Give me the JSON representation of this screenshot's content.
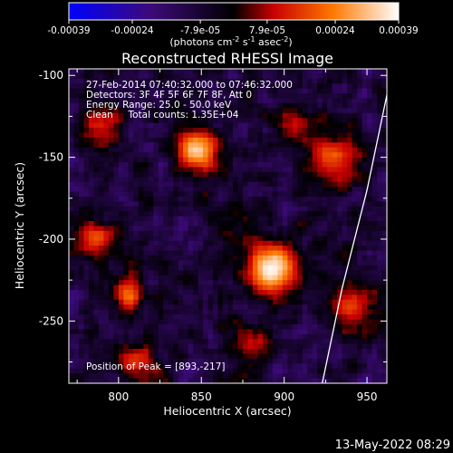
{
  "chart_data": {
    "type": "heatmap",
    "title": "Reconstructed RHESSI Image",
    "xlabel": "Heliocentric X (arcsec)",
    "ylabel": "Heliocentric Y (arcsec)",
    "xlim": [
      770,
      962
    ],
    "ylim": [
      -288,
      -96
    ],
    "x_ticks": [
      800,
      850,
      900,
      950
    ],
    "y_ticks": [
      -100,
      -150,
      -200,
      -250
    ],
    "colorbar": {
      "ticks": [
        "-0.00039",
        "-0.00024",
        "-7.9e-05",
        "7.9e-05",
        "0.00024",
        "0.00039"
      ],
      "tick_values": [
        -0.00039,
        -0.00024,
        -7.9e-05,
        7.9e-05,
        0.00024,
        0.00039
      ],
      "range": [
        -0.00039,
        0.00039
      ],
      "unit_label": "(photons cm",
      "unit_exp1": "-2",
      "unit_mid1": " s",
      "unit_exp2": "-1",
      "unit_mid2": " asec",
      "unit_exp3": "-2",
      "unit_end": ")"
    },
    "annotations": [
      "27-Feb-2014 07:40:32.000 to 07:46:32.000",
      "Detectors: 3F 4F 5F 6F 7F 8F, Att 0",
      "Energy Range: 25.0 - 50.0 keV",
      "Clean     Total counts: 1.35E+04"
    ],
    "peak_label": "Position of Peak = [893,-217]",
    "peak": [
      893,
      -217
    ],
    "sources": [
      {
        "x": 893,
        "y": -218,
        "amp": 1.0,
        "sigma": 11
      },
      {
        "x": 848,
        "y": -146,
        "amp": 0.9,
        "sigma": 9
      },
      {
        "x": 806,
        "y": -234,
        "amp": 0.62,
        "sigma": 7
      },
      {
        "x": 785,
        "y": -200,
        "amp": 0.55,
        "sigma": 8
      },
      {
        "x": 790,
        "y": -130,
        "amp": 0.45,
        "sigma": 9
      },
      {
        "x": 930,
        "y": -150,
        "amp": 0.55,
        "sigma": 12
      },
      {
        "x": 940,
        "y": -240,
        "amp": 0.55,
        "sigma": 10
      },
      {
        "x": 880,
        "y": -265,
        "amp": 0.35,
        "sigma": 10
      },
      {
        "x": 810,
        "y": -275,
        "amp": 0.5,
        "sigma": 8
      },
      {
        "x": 905,
        "y": -130,
        "amp": 0.4,
        "sigma": 8
      },
      {
        "x": 868,
        "y": -188,
        "amp": 0.25,
        "sigma": 10
      }
    ],
    "limb": [
      [
        962,
        -112
      ],
      [
        950,
        -170
      ],
      [
        935,
        -230
      ],
      [
        923,
        -288
      ]
    ]
  },
  "footer_timestamp": "13-May-2022 08:29"
}
